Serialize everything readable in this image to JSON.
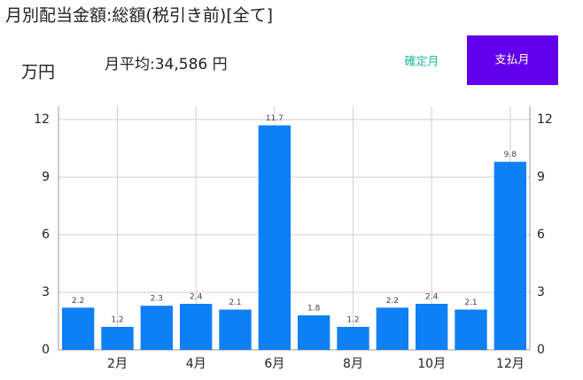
{
  "chart_data": {
    "type": "bar",
    "title": "月別配当金額:総額(税引き前)[全て]",
    "y_axis_label": "万円",
    "annotation": "月平均:34,586 円",
    "categories": [
      null,
      "2月",
      null,
      "4月",
      null,
      "6月",
      null,
      "8月",
      null,
      "10月",
      null,
      "12月"
    ],
    "values": [
      2.2,
      1.2,
      2.3,
      2.4,
      2.1,
      11.7,
      1.8,
      1.2,
      2.2,
      2.4,
      2.1,
      9.8
    ],
    "color": "#0f7ff5",
    "ylim": [
      0,
      12
    ],
    "yticks": [
      0,
      3,
      6,
      9,
      12
    ],
    "y2lim": [
      0,
      12
    ],
    "y2ticks": [
      0,
      3,
      6,
      9,
      12
    ],
    "grid": true
  },
  "controls": [
    "確定月",
    "支払月"
  ]
}
